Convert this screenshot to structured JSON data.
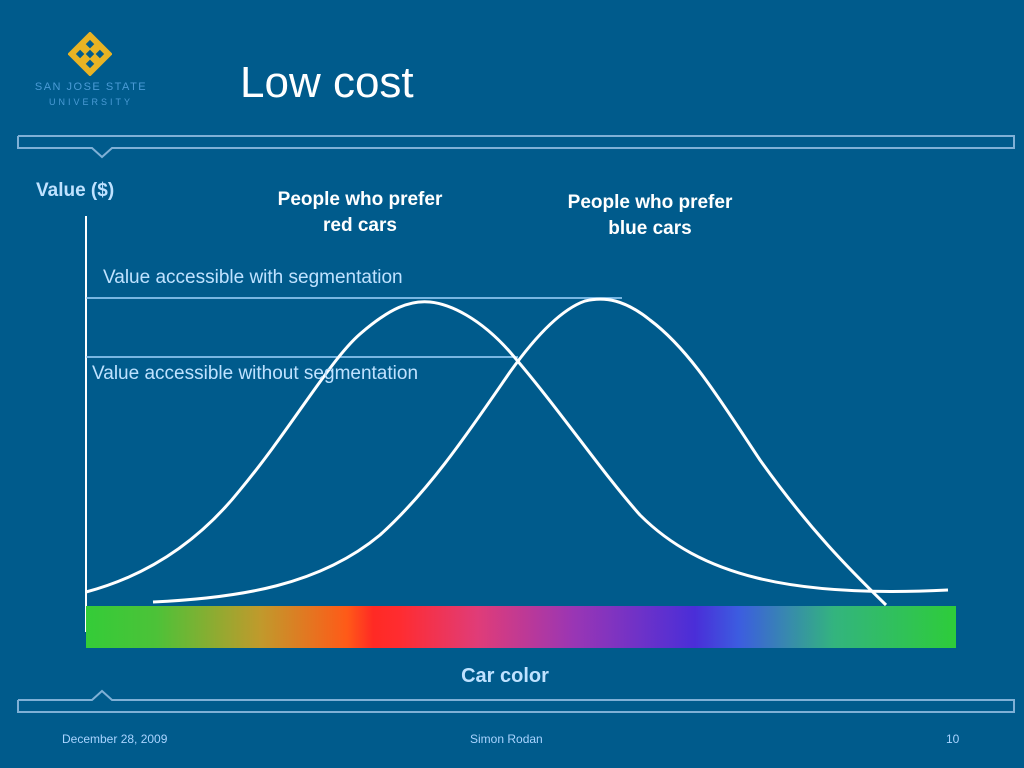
{
  "slide": {
    "title": "Low cost",
    "logo": {
      "name": "SAN JOSE STATE",
      "sub": "UNIVERSITY"
    }
  },
  "diagram": {
    "y_axis_label": "Value ($)",
    "x_axis_label": "Car color",
    "curves": [
      {
        "label_lines": [
          "People who prefer",
          "red cars"
        ]
      },
      {
        "label_lines": [
          "People who prefer",
          "blue cars"
        ]
      }
    ],
    "levels": {
      "with_segmentation": "Value accessible with segmentation",
      "without_segmentation": "Value accessible without segmentation"
    },
    "colors": {
      "background": "#005b8c",
      "curve": "#ffffff",
      "level_line": "#9fd4ff",
      "axis_text": "#bfe2ff"
    }
  },
  "footer": {
    "date": "December 28, 2009",
    "author": "Simon Rodan",
    "page": "10"
  }
}
